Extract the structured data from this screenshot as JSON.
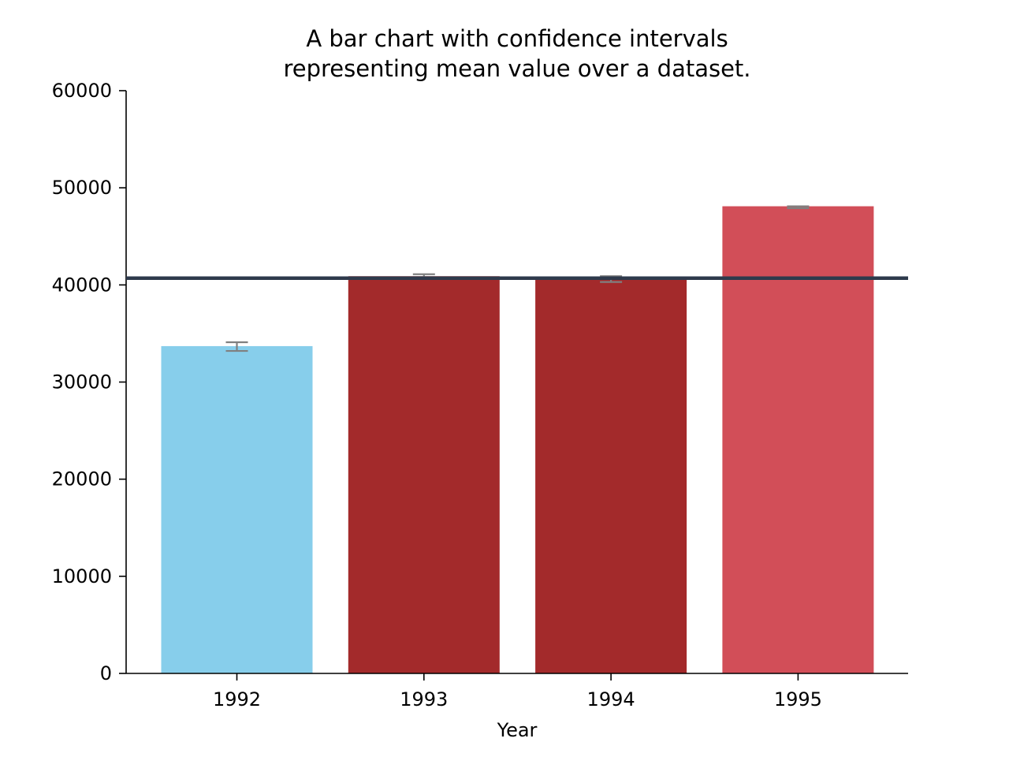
{
  "chart_data": {
    "type": "bar",
    "title_lines": [
      "A bar chart with confidence intervals",
      "representing  mean value over a dataset."
    ],
    "xlabel": "Year",
    "ylabel": "",
    "ylim": [
      0,
      60000
    ],
    "yticks": [
      0,
      10000,
      20000,
      30000,
      40000,
      50000,
      60000
    ],
    "ytick_labels": [
      "0",
      "10000",
      "20000",
      "30000",
      "40000",
      "50000",
      "60000"
    ],
    "categories": [
      "1992",
      "1993",
      "1994",
      "1995"
    ],
    "values": [
      33700,
      40900,
      40600,
      48100
    ],
    "error_low": [
      33200,
      40800,
      40300,
      47900
    ],
    "error_high": [
      34100,
      41100,
      40900,
      48100
    ],
    "bar_colors": [
      "#87ceeb",
      "#a32a2b",
      "#a32a2b",
      "#d24e58"
    ],
    "error_color": "#808080",
    "reference_line": {
      "value": 40700,
      "color": "#2e3a4c"
    },
    "grid": false,
    "legend": "none"
  }
}
